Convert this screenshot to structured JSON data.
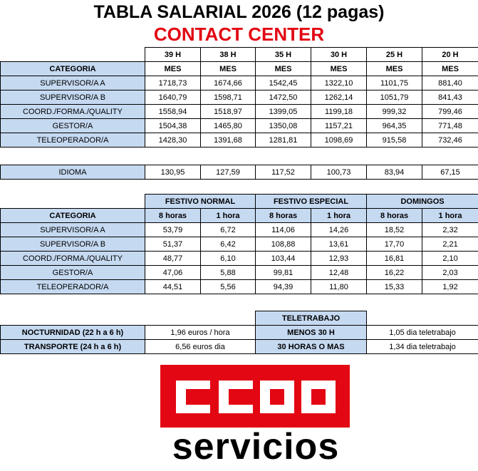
{
  "title": "TABLA SALARIAL 2026 (12 pagas)",
  "subtitle": "CONTACT CENTER",
  "salary": {
    "hours": [
      "39 H",
      "38 H",
      "35 H",
      "30 H",
      "25 H",
      "20 H"
    ],
    "category_header": "CATEGORIA",
    "mes": "MES",
    "rows": [
      {
        "name": "SUPERVISOR/A A",
        "values": [
          "1718,73",
          "1674,66",
          "1542,45",
          "1322,10",
          "1101,75",
          "881,40"
        ]
      },
      {
        "name": "SUPERVISOR/A B",
        "values": [
          "1640,79",
          "1598,71",
          "1472,50",
          "1262,14",
          "1051,79",
          "841,43"
        ]
      },
      {
        "name": "COORD./FORMA./QUALITY",
        "values": [
          "1558,94",
          "1518,97",
          "1399,05",
          "1199,18",
          "999,32",
          "799,46"
        ]
      },
      {
        "name": "GESTOR/A",
        "values": [
          "1504,38",
          "1465,80",
          "1350,08",
          "1157,21",
          "964,35",
          "771,48"
        ]
      },
      {
        "name": "TELEOPERADOR/A",
        "values": [
          "1428,30",
          "1391,68",
          "1281,81",
          "1098,69",
          "915,58",
          "732,46"
        ]
      }
    ]
  },
  "idioma": {
    "label": "IDIOMA",
    "values": [
      "130,95",
      "127,59",
      "117,52",
      "100,73",
      "83,94",
      "67,15"
    ]
  },
  "festivos": {
    "groups": [
      "FESTIVO NORMAL",
      "FESTIVO ESPECIAL",
      "DOMINGOS"
    ],
    "category_header": "CATEGORIA",
    "sub": [
      "8 horas",
      "1 hora",
      "8 horas",
      "1 hora",
      "8 horas",
      "1 hora"
    ],
    "rows": [
      {
        "name": "SUPERVISOR/A A",
        "values": [
          "53,79",
          "6,72",
          "114,06",
          "14,26",
          "18,52",
          "2,32"
        ]
      },
      {
        "name": "SUPERVISOR/A B",
        "values": [
          "51,37",
          "6,42",
          "108,88",
          "13,61",
          "17,70",
          "2,21"
        ]
      },
      {
        "name": "COORD./FORMA./QUALITY",
        "values": [
          "48,77",
          "6,10",
          "103,44",
          "12,93",
          "16,81",
          "2,10"
        ]
      },
      {
        "name": "GESTOR/A",
        "values": [
          "47,06",
          "5,88",
          "99,81",
          "12,48",
          "16,22",
          "2,03"
        ]
      },
      {
        "name": "TELEOPERADOR/A",
        "values": [
          "44,51",
          "5,56",
          "94,39",
          "11,80",
          "15,33",
          "1,92"
        ]
      }
    ]
  },
  "extras": {
    "teletrabajo_header": "TELETRABAJO",
    "rows": [
      {
        "label": "NOCTURNIDAD (22 h a 6 h)",
        "value": "1,96 euros / hora",
        "tele_label": "MENOS 30 H",
        "tele_value": "1,05 dia teletrabajo"
      },
      {
        "label": "TRANSPORTE (24 h a 6 h)",
        "value": "6,56 euros dia",
        "tele_label": "30 HORAS O MAS",
        "tele_value": "1,34 dia teletrabajo"
      }
    ]
  },
  "logo": {
    "wordmark": "CCOO",
    "text": "servicios",
    "color": "#e30613"
  }
}
